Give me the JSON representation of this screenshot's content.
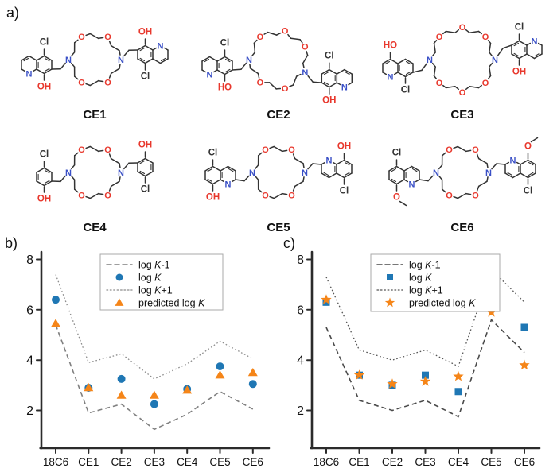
{
  "figure": {
    "panel_a_label": "a)",
    "panel_b_label": "b)",
    "panel_c_label": "c)"
  },
  "molecule": {
    "colors": {
      "bond": "#333333",
      "oxygen": "#e8382d",
      "nitrogen": "#3a50c6",
      "substituent": "#333333"
    },
    "ring_patterns": {
      "18": [
        "N",
        "C",
        "C",
        "O",
        "C",
        "C",
        "O",
        "C",
        "C",
        "N",
        "C",
        "C",
        "O",
        "C",
        "C",
        "O",
        "C",
        "C"
      ],
      "21": [
        "N",
        "C",
        "C",
        "O",
        "C",
        "C",
        "O",
        "C",
        "C",
        "O",
        "C",
        "C",
        "N",
        "C",
        "C",
        "O",
        "C",
        "C",
        "O",
        "C",
        "C"
      ],
      "24": [
        "N",
        "C",
        "C",
        "O",
        "C",
        "C",
        "O",
        "C",
        "C",
        "O",
        "C",
        "C",
        "N",
        "C",
        "C",
        "O",
        "C",
        "C",
        "O",
        "C",
        "C",
        "O",
        "C",
        "C"
      ]
    },
    "structures": [
      {
        "name": "CE1",
        "ring": 18,
        "arms": [
          {
            "shape": "quinoline",
            "flip": false,
            "dy": 6,
            "top": {
              "text": "Cl",
              "ring": "near"
            },
            "bottom": {
              "text": "OH",
              "ring": "near"
            },
            "n_at": "far_bottom",
            "n_text": "N"
          },
          {
            "shape": "quinoline",
            "flip": true,
            "dy": -6,
            "top": {
              "text": "OH",
              "ring": "near"
            },
            "bottom": {
              "text": "Cl",
              "ring": "near"
            },
            "n_at": "far_top",
            "n_text": "N"
          }
        ]
      },
      {
        "name": "CE2",
        "ring": 21,
        "arms": [
          {
            "shape": "quinoline",
            "flip": false,
            "dy": 7,
            "top": {
              "text": "Cl",
              "ring": "near"
            },
            "bottom": {
              "text": "HO",
              "ring": "near"
            },
            "n_at": "far_bottom",
            "n_text": "N"
          },
          {
            "shape": "quinoline",
            "flip": false,
            "dy": 7,
            "top": {
              "text": "Cl",
              "ring": "near"
            },
            "bottom": {
              "text": "OH",
              "ring": "near"
            },
            "n_at": "far_bottom",
            "n_text": "N"
          }
        ]
      },
      {
        "name": "CE3",
        "ring": 24,
        "arms": [
          {
            "shape": "quinoline",
            "flip": false,
            "dy": 10,
            "top": {
              "text": "HO",
              "ring": "far"
            },
            "bottom": {
              "text": "Cl",
              "ring": "near"
            },
            "n_at": "far_bottom",
            "n_text": "N"
          },
          {
            "shape": "quinoline",
            "flip": true,
            "dy": -12,
            "top": {
              "text": "Cl",
              "ring": "near"
            },
            "bottom": {
              "text": "OH",
              "ring": "near"
            },
            "n_at": "far_top",
            "n_text": "N"
          }
        ]
      },
      {
        "name": "CE4",
        "ring": 18,
        "arms": [
          {
            "shape": "phenol",
            "flip": false,
            "dy": 5,
            "top": {
              "text": "Cl",
              "ring": "near"
            },
            "bottom": {
              "text": "OH",
              "ring": "near"
            }
          },
          {
            "shape": "phenol",
            "flip": true,
            "dy": -6,
            "top": {
              "text": "OH",
              "ring": "near"
            },
            "bottom": {
              "text": "Cl",
              "ring": "near"
            }
          }
        ]
      },
      {
        "name": "CE5",
        "ring": 18,
        "arms": [
          {
            "shape": "quinoline",
            "flip": false,
            "dy": 3,
            "top": {
              "text": "Cl",
              "ring": "far"
            },
            "bottom": {
              "text": "OH",
              "ring": "far"
            },
            "n_at": "near_bottom",
            "n_text": "N"
          },
          {
            "shape": "quinoline",
            "flip": true,
            "dy": -4,
            "top": {
              "text": "OH",
              "ring": "far"
            },
            "bottom": {
              "text": "Cl",
              "ring": "far"
            },
            "n_at": "near_top",
            "n_text": "N"
          }
        ]
      },
      {
        "name": "CE6",
        "ring": 18,
        "arms": [
          {
            "shape": "quinoline",
            "flip": false,
            "dy": 3,
            "top": {
              "text": "Cl",
              "ring": "far"
            },
            "bottom": {
              "text": "O",
              "methyl": true,
              "ring": "far"
            },
            "n_at": "near_bottom",
            "n_text": "N"
          },
          {
            "shape": "quinoline",
            "flip": true,
            "dy": -4,
            "top": {
              "text": "O",
              "methyl": true,
              "ring": "far"
            },
            "bottom": {
              "text": "Cl",
              "ring": "far"
            },
            "n_at": "near_top",
            "n_text": "N"
          }
        ]
      }
    ]
  },
  "chart_data": [
    {
      "panel": "b",
      "type": "scatter",
      "categories": [
        "18C6",
        "CE1",
        "CE2",
        "CE3",
        "CE4",
        "CE5",
        "CE6"
      ],
      "ylim": [
        0.5,
        8.3
      ],
      "yticks": [
        2,
        4,
        6,
        8
      ],
      "grid": false,
      "legend_position": "top-center",
      "series": [
        {
          "name": "log K-1",
          "style": "dashed-line",
          "color": "#7f7f7f",
          "values": [
            5.4,
            1.9,
            2.25,
            1.25,
            1.85,
            2.75,
            2.05
          ]
        },
        {
          "name": "log K",
          "style": "scatter",
          "marker": "circle",
          "color": "#1f77b4",
          "values": [
            6.4,
            2.9,
            3.25,
            2.25,
            2.85,
            3.75,
            3.05
          ]
        },
        {
          "name": "log K+1",
          "style": "dotted-line",
          "color": "#8c8c8c",
          "values": [
            7.4,
            3.9,
            4.25,
            3.25,
            3.85,
            4.75,
            4.05
          ]
        },
        {
          "name": "predicted log K",
          "style": "scatter",
          "marker": "triangle",
          "color": "#f58518",
          "values": [
            5.45,
            2.9,
            2.6,
            2.6,
            2.8,
            3.4,
            3.5
          ]
        }
      ]
    },
    {
      "panel": "c",
      "type": "scatter",
      "categories": [
        "18C6",
        "CE1",
        "CE2",
        "CE3",
        "CE4",
        "CE5",
        "CE6"
      ],
      "ylim": [
        0.5,
        8.3
      ],
      "yticks": [
        2,
        4,
        6,
        8
      ],
      "grid": false,
      "legend_position": "top-center",
      "series": [
        {
          "name": "log K-1",
          "style": "dashed-line",
          "color": "#4a4a4a",
          "values": [
            5.3,
            2.4,
            2.0,
            2.4,
            1.75,
            5.6,
            4.3
          ]
        },
        {
          "name": "log K",
          "style": "scatter",
          "marker": "square",
          "color": "#1f77b4",
          "values": [
            6.3,
            3.4,
            3.0,
            3.4,
            2.75,
            6.6,
            5.3
          ]
        },
        {
          "name": "log K+1",
          "style": "dotted-line",
          "color": "#555555",
          "values": [
            7.3,
            4.4,
            4.0,
            4.4,
            3.75,
            7.6,
            6.3
          ]
        },
        {
          "name": "predicted log K",
          "style": "scatter",
          "marker": "star",
          "color": "#f58518",
          "values": [
            6.4,
            3.4,
            3.05,
            3.15,
            3.35,
            5.9,
            3.8
          ]
        }
      ]
    }
  ]
}
